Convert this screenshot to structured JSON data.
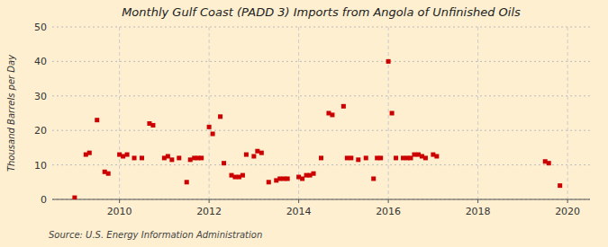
{
  "chart_data": {
    "type": "scatter",
    "title": "Monthly Gulf Coast (PADD 3) Imports from Angola of Unfinished Oils",
    "ylabel": "Thousand Barrels per Day",
    "source": "Source: U.S. Energy Information Administration",
    "color": "#cc0000",
    "marker": "square",
    "grid": true,
    "xlim": [
      2008.5,
      2020.5
    ],
    "ylim": [
      0,
      50
    ],
    "xticks": [
      2010,
      2012,
      2014,
      2016,
      2018,
      2020
    ],
    "yticks": [
      0,
      10,
      20,
      30,
      40,
      50
    ],
    "x": [
      2009.0,
      2009.25,
      2009.33,
      2009.5,
      2009.67,
      2009.75,
      2010.0,
      2010.08,
      2010.17,
      2010.33,
      2010.5,
      2010.67,
      2010.75,
      2011.0,
      2011.08,
      2011.17,
      2011.33,
      2011.5,
      2011.58,
      2011.67,
      2011.75,
      2011.83,
      2012.0,
      2012.08,
      2012.25,
      2012.33,
      2012.5,
      2012.58,
      2012.67,
      2012.75,
      2012.83,
      2013.0,
      2013.08,
      2013.17,
      2013.33,
      2013.5,
      2013.58,
      2013.67,
      2013.75,
      2014.0,
      2014.08,
      2014.17,
      2014.25,
      2014.33,
      2014.5,
      2014.67,
      2014.75,
      2015.0,
      2015.08,
      2015.17,
      2015.33,
      2015.5,
      2015.67,
      2015.75,
      2015.83,
      2016.0,
      2016.08,
      2016.17,
      2016.33,
      2016.42,
      2016.5,
      2016.58,
      2016.67,
      2016.75,
      2016.83,
      2017.0,
      2017.08,
      2019.5,
      2019.58,
      2019.83
    ],
    "values": [
      0.5,
      13.0,
      13.5,
      23.0,
      8.0,
      7.5,
      13.0,
      12.5,
      13.0,
      12.0,
      12.0,
      22.0,
      21.5,
      12.0,
      12.5,
      11.5,
      12.0,
      5.0,
      11.5,
      12.0,
      12.0,
      12.0,
      21.0,
      19.0,
      24.0,
      10.5,
      7.0,
      6.5,
      6.5,
      7.0,
      13.0,
      12.5,
      14.0,
      13.5,
      5.0,
      5.5,
      6.0,
      6.0,
      6.0,
      6.5,
      6.0,
      7.0,
      7.0,
      7.5,
      12.0,
      25.0,
      24.5,
      27.0,
      12.0,
      12.0,
      11.5,
      12.0,
      6.0,
      12.0,
      12.0,
      40.0,
      25.0,
      12.0,
      12.0,
      12.0,
      12.0,
      13.0,
      13.0,
      12.5,
      12.0,
      13.0,
      12.5,
      11.0,
      10.5,
      4.0
    ]
  }
}
